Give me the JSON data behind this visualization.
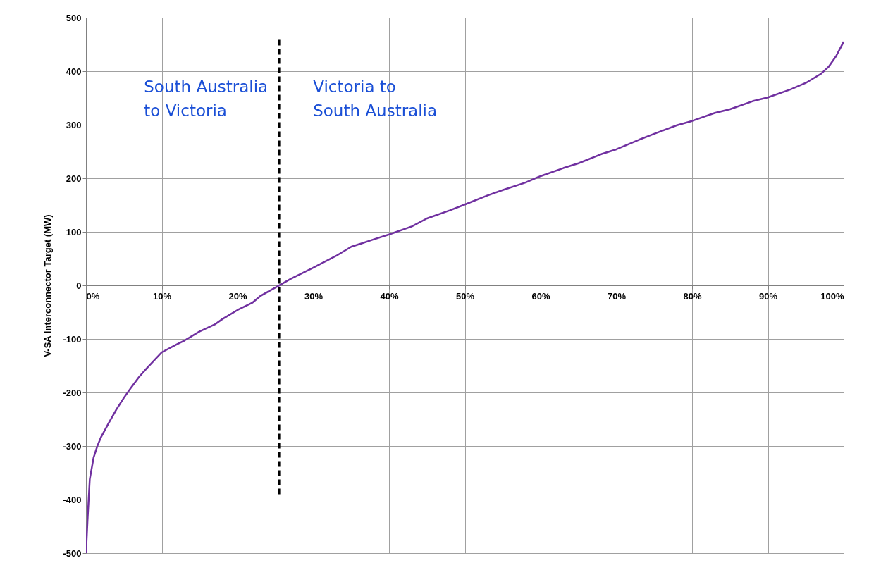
{
  "chart_data": {
    "type": "line",
    "ylabel": "V-SA Interconnector Target (MW)",
    "xlim": [
      0,
      100
    ],
    "ylim": [
      -500,
      500
    ],
    "xticks": [
      {
        "value": 0,
        "label": "0%"
      },
      {
        "value": 10,
        "label": "10%"
      },
      {
        "value": 20,
        "label": "20%"
      },
      {
        "value": 30,
        "label": "30%"
      },
      {
        "value": 40,
        "label": "40%"
      },
      {
        "value": 50,
        "label": "50%"
      },
      {
        "value": 60,
        "label": "60%"
      },
      {
        "value": 70,
        "label": "70%"
      },
      {
        "value": 80,
        "label": "80%"
      },
      {
        "value": 90,
        "label": "90%"
      },
      {
        "value": 100,
        "label": "100%"
      }
    ],
    "yticks": [
      -500,
      -400,
      -300,
      -200,
      -100,
      0,
      100,
      200,
      300,
      400,
      500
    ],
    "grid": true,
    "line_style": "solid",
    "series": [
      {
        "color": "#7030a0",
        "x": [
          0,
          0.1,
          0.2,
          0.5,
          1,
          1.5,
          2,
          3,
          4,
          5,
          6,
          7,
          8,
          10,
          12,
          13,
          15,
          17,
          18,
          20,
          22,
          23,
          25,
          27,
          30,
          33,
          35,
          38,
          40,
          43,
          45,
          48,
          50,
          53,
          55,
          58,
          60,
          63,
          65,
          68,
          70,
          73,
          75,
          78,
          80,
          83,
          85,
          88,
          90,
          93,
          95,
          97,
          98,
          99,
          100
        ],
        "values": [
          -500,
          -470,
          -440,
          -362,
          -322,
          -300,
          -283,
          -257,
          -232,
          -210,
          -190,
          -171,
          -155,
          -125,
          -110,
          -103,
          -86,
          -73,
          -63,
          -46,
          -32,
          -20,
          -4,
          12,
          33,
          55,
          72,
          86,
          95,
          110,
          125,
          140,
          151,
          168,
          178,
          192,
          204,
          219,
          228,
          245,
          254,
          272,
          283,
          299,
          307,
          322,
          329,
          344,
          351,
          366,
          378,
          395,
          408,
          428,
          455
        ]
      },
      {
        "type": "line",
        "line_style": "dashed",
        "color": "#000000",
        "x": [
          25.5,
          25.5
        ],
        "values": [
          -390,
          465
        ]
      }
    ],
    "annotations": [
      "South Australia\nto Victoria",
      "Victoria to\nSouth Australia"
    ]
  }
}
